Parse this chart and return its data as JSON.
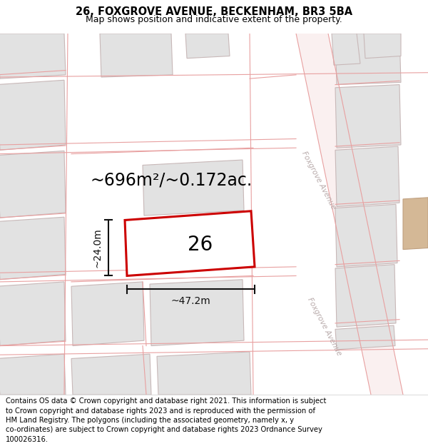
{
  "title_line1": "26, FOXGROVE AVENUE, BECKENHAM, BR3 5BA",
  "title_line2": "Map shows position and indicative extent of the property.",
  "area_label": "~696m²/~0.172ac.",
  "width_label": "~47.2m",
  "height_label": "~24.0m",
  "plot_number": "26",
  "map_bg": "#ffffff",
  "building_fill": "#e2e2e2",
  "building_stroke": "#c8b8b8",
  "parcel_line": "#e8a0a0",
  "highlight_fill": "#ffffff",
  "highlight_stroke": "#cc0000",
  "road_label_color": "#b8aaaa",
  "dim_color": "#111111",
  "tan_fill": "#d4b896",
  "tan_stroke": "#c0a080",
  "title_fontsize": 10.5,
  "subtitle_fontsize": 9,
  "footer_fontsize": 7.2,
  "area_fontsize": 17,
  "dim_fontsize": 10,
  "plot_num_fontsize": 20,
  "road_label_fontsize": 7.5,
  "footer_lines": [
    "Contains OS data © Crown copyright and database right 2021. This information is subject",
    "to Crown copyright and database rights 2023 and is reproduced with the permission of",
    "HM Land Registry. The polygons (including the associated geometry, namely x, y",
    "co-ordinates) are subject to Crown copyright and database rights 2023 Ordnance Survey",
    "100026316."
  ]
}
